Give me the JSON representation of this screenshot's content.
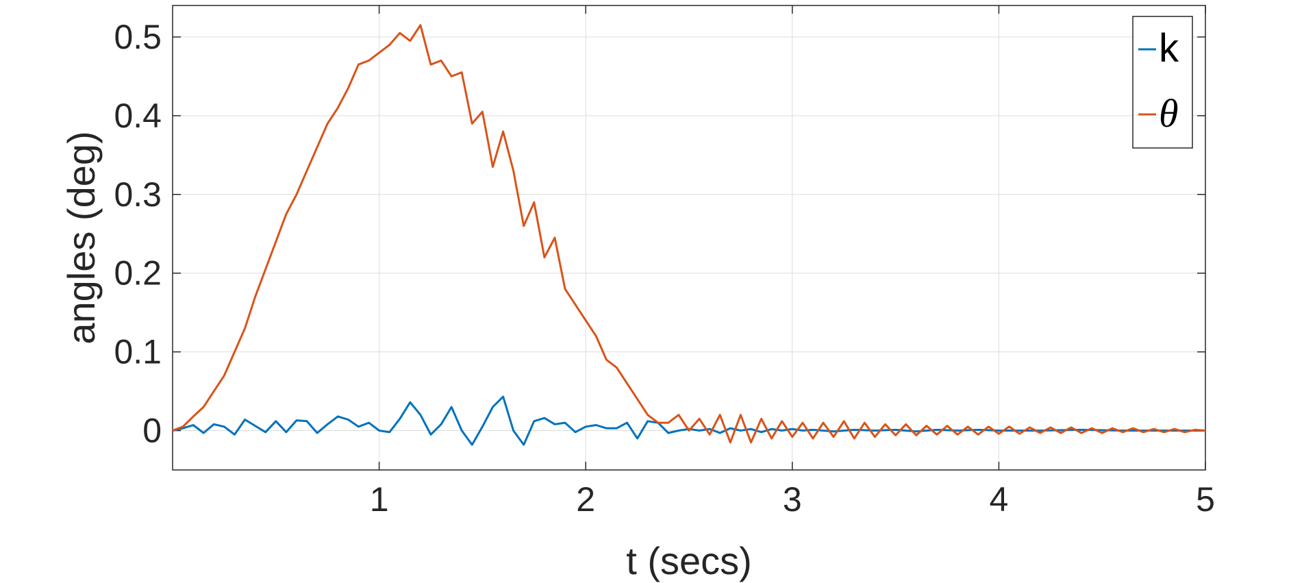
{
  "chart_data": {
    "type": "line",
    "title": "",
    "xlabel": "t (secs)",
    "ylabel": "angles (deg)",
    "xlim": [
      0,
      5
    ],
    "ylim": [
      -0.05,
      0.54
    ],
    "xticks": [
      1,
      2,
      3,
      4,
      5
    ],
    "xtick_labels": [
      "1",
      "2",
      "3",
      "4",
      "5"
    ],
    "yticks": [
      0,
      0.1,
      0.2,
      0.3,
      0.4,
      0.5
    ],
    "ytick_labels": [
      "0",
      "0.1",
      "0.2",
      "0.3",
      "0.4",
      "0.5"
    ],
    "grid": true,
    "legend_position": "top-right",
    "series": [
      {
        "name": "k",
        "color": "#0072BD",
        "x": [
          0,
          0.05,
          0.1,
          0.15,
          0.2,
          0.25,
          0.3,
          0.35,
          0.4,
          0.45,
          0.5,
          0.55,
          0.6,
          0.65,
          0.7,
          0.75,
          0.8,
          0.85,
          0.9,
          0.95,
          1.0,
          1.05,
          1.1,
          1.15,
          1.2,
          1.25,
          1.3,
          1.35,
          1.4,
          1.45,
          1.5,
          1.55,
          1.6,
          1.65,
          1.7,
          1.75,
          1.8,
          1.85,
          1.9,
          1.95,
          2.0,
          2.05,
          2.1,
          2.15,
          2.2,
          2.25,
          2.3,
          2.35,
          2.4,
          2.45,
          2.5,
          2.55,
          2.6,
          2.65,
          2.7,
          2.75,
          2.8,
          2.85,
          2.9,
          2.95,
          3.0,
          3.05,
          3.1,
          3.2,
          3.3,
          3.4,
          3.5,
          3.6,
          3.7,
          3.8,
          3.9,
          4.0,
          4.2,
          4.4,
          4.6,
          4.8,
          5.0
        ],
        "y": [
          0,
          0.003,
          0.007,
          -0.003,
          0.008,
          0.005,
          -0.005,
          0.014,
          0.006,
          -0.002,
          0.012,
          -0.002,
          0.013,
          0.012,
          -0.003,
          0.008,
          0.018,
          0.014,
          0.005,
          0.01,
          0.0,
          -0.002,
          0.015,
          0.036,
          0.02,
          -0.005,
          0.008,
          0.03,
          0.0,
          -0.018,
          0.005,
          0.03,
          0.043,
          0.0,
          -0.018,
          0.012,
          0.016,
          0.008,
          0.01,
          -0.002,
          0.005,
          0.007,
          0.003,
          0.003,
          0.01,
          -0.01,
          0.012,
          0.01,
          -0.003,
          0.0,
          0.002,
          0.0,
          0.002,
          -0.003,
          0.003,
          0.0,
          0.002,
          -0.002,
          0.002,
          0.0,
          0.002,
          0.0,
          0.001,
          -0.001,
          0.001,
          0.0,
          0.001,
          -0.001,
          0.001,
          0.0,
          0.001,
          0.0,
          0.0,
          0.001,
          0.0,
          0.0,
          0.0
        ]
      },
      {
        "name": "θ",
        "color": "#D95319",
        "x": [
          0,
          0.05,
          0.1,
          0.15,
          0.2,
          0.25,
          0.3,
          0.35,
          0.4,
          0.45,
          0.5,
          0.55,
          0.6,
          0.65,
          0.7,
          0.75,
          0.8,
          0.85,
          0.9,
          0.95,
          1.0,
          1.05,
          1.1,
          1.15,
          1.2,
          1.25,
          1.3,
          1.35,
          1.4,
          1.45,
          1.5,
          1.55,
          1.6,
          1.65,
          1.7,
          1.75,
          1.8,
          1.85,
          1.9,
          1.95,
          2.0,
          2.05,
          2.1,
          2.15,
          2.2,
          2.25,
          2.3,
          2.35,
          2.4,
          2.45,
          2.5,
          2.55,
          2.6,
          2.65,
          2.7,
          2.75,
          2.8,
          2.85,
          2.9,
          2.95,
          3.0,
          3.05,
          3.1,
          3.15,
          3.2,
          3.25,
          3.3,
          3.35,
          3.4,
          3.45,
          3.5,
          3.55,
          3.6,
          3.65,
          3.7,
          3.75,
          3.8,
          3.85,
          3.9,
          3.95,
          4.0,
          4.05,
          4.1,
          4.15,
          4.2,
          4.25,
          4.3,
          4.35,
          4.4,
          4.45,
          4.5,
          4.55,
          4.6,
          4.65,
          4.7,
          4.75,
          4.8,
          4.85,
          4.9,
          4.95,
          5.0
        ],
        "y": [
          0.0,
          0.005,
          0.018,
          0.03,
          0.05,
          0.07,
          0.1,
          0.13,
          0.17,
          0.205,
          0.24,
          0.275,
          0.3,
          0.33,
          0.36,
          0.39,
          0.41,
          0.435,
          0.465,
          0.47,
          0.48,
          0.49,
          0.505,
          0.495,
          0.515,
          0.465,
          0.47,
          0.45,
          0.455,
          0.39,
          0.405,
          0.335,
          0.38,
          0.33,
          0.26,
          0.29,
          0.22,
          0.245,
          0.18,
          0.16,
          0.14,
          0.12,
          0.09,
          0.08,
          0.06,
          0.04,
          0.02,
          0.01,
          0.01,
          0.02,
          0.0,
          0.015,
          -0.005,
          0.02,
          -0.015,
          0.02,
          -0.015,
          0.015,
          -0.01,
          0.012,
          -0.008,
          0.01,
          -0.01,
          0.01,
          -0.008,
          0.012,
          -0.01,
          0.01,
          -0.008,
          0.008,
          -0.006,
          0.008,
          -0.006,
          0.006,
          -0.005,
          0.006,
          -0.005,
          0.005,
          -0.005,
          0.005,
          -0.004,
          0.005,
          -0.004,
          0.004,
          -0.003,
          0.004,
          -0.003,
          0.004,
          -0.003,
          0.003,
          -0.003,
          0.003,
          -0.002,
          0.003,
          -0.002,
          0.002,
          -0.002,
          0.002,
          -0.002,
          0.001,
          0.0
        ]
      }
    ]
  }
}
